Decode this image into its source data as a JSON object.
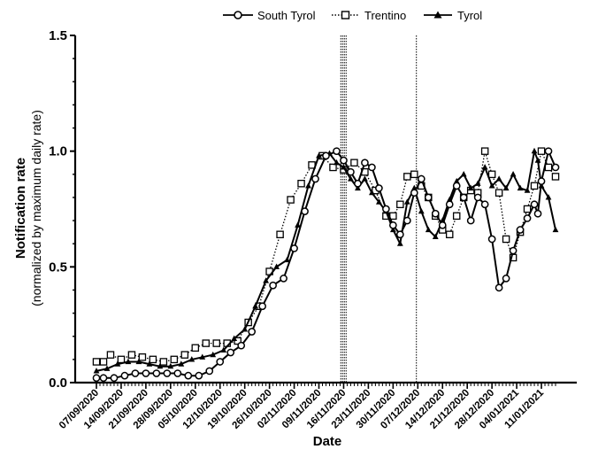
{
  "chart_data": {
    "type": "line",
    "xlabel": "Date",
    "ylabel_line1": "Notification rate",
    "ylabel_line2": "(normalized by maximum daily rate)",
    "ylim": [
      0,
      1.5
    ],
    "yticks": [
      "0.0",
      "0.5",
      "1.0",
      "1.5"
    ],
    "x_start_date": "07/09/2020",
    "x_days": 130,
    "xtick_labels": [
      "07/09/2020",
      "14/09/2020",
      "21/09/2020",
      "28/09/2020",
      "05/10/2020",
      "12/10/2020",
      "19/10/2020",
      "26/10/2020",
      "02/11/2020",
      "09/11/2020",
      "16/11/2020",
      "23/11/2020",
      "30/11/2020",
      "07/12/2020",
      "14/12/2020",
      "21/12/2020",
      "28/12/2020",
      "04/01/2021",
      "11/01/2021"
    ],
    "vertical_lines": [
      "16/11/2020 (dotted, x4)",
      "07/12/2020 (dotted)"
    ],
    "legend": "top",
    "series": [
      {
        "name": "South Tyrol",
        "marker": "circle-open",
        "line": "solid",
        "color": "#000000",
        "x": [
          0,
          2,
          5,
          8,
          11,
          14,
          17,
          20,
          23,
          26,
          29,
          32,
          35,
          38,
          41,
          44,
          47,
          50,
          53,
          56,
          59,
          62,
          65,
          68,
          70,
          72,
          74,
          76,
          78,
          80,
          82,
          84,
          86,
          88,
          90,
          92,
          94,
          96,
          98,
          100,
          102,
          104,
          106,
          108,
          110,
          112,
          114,
          116,
          118,
          120,
          122,
          124,
          125,
          126,
          128,
          130
        ],
        "y": [
          0.02,
          0.02,
          0.02,
          0.03,
          0.04,
          0.04,
          0.04,
          0.04,
          0.04,
          0.03,
          0.03,
          0.05,
          0.09,
          0.13,
          0.16,
          0.22,
          0.33,
          0.42,
          0.45,
          0.58,
          0.74,
          0.88,
          0.98,
          1.0,
          0.96,
          0.91,
          0.86,
          0.95,
          0.93,
          0.84,
          0.75,
          0.68,
          0.64,
          0.7,
          0.82,
          0.88,
          0.8,
          0.73,
          0.68,
          0.77,
          0.85,
          0.8,
          0.7,
          0.8,
          0.77,
          0.62,
          0.41,
          0.45,
          0.57,
          0.66,
          0.71,
          0.77,
          0.73,
          0.87,
          1.0,
          0.93
        ]
      },
      {
        "name": "Trentino",
        "marker": "square-open",
        "line": "dotted",
        "color": "#000000",
        "x": [
          0,
          2,
          4,
          7,
          10,
          13,
          16,
          19,
          22,
          25,
          28,
          31,
          34,
          37,
          40,
          43,
          46,
          49,
          52,
          55,
          58,
          61,
          64,
          67,
          70,
          73,
          76,
          79,
          82,
          84,
          86,
          88,
          90,
          92,
          94,
          96,
          98,
          100,
          102,
          104,
          106,
          108,
          110,
          112,
          114,
          116,
          118,
          120,
          122,
          124,
          126,
          128,
          130
        ],
        "y": [
          0.09,
          0.09,
          0.12,
          0.1,
          0.12,
          0.11,
          0.1,
          0.09,
          0.1,
          0.12,
          0.15,
          0.17,
          0.17,
          0.17,
          0.18,
          0.26,
          0.33,
          0.48,
          0.64,
          0.79,
          0.86,
          0.94,
          0.98,
          0.93,
          0.92,
          0.95,
          0.91,
          0.83,
          0.72,
          0.72,
          0.77,
          0.89,
          0.9,
          0.85,
          0.8,
          0.72,
          0.66,
          0.64,
          0.72,
          0.8,
          0.83,
          0.82,
          1.0,
          0.9,
          0.82,
          0.62,
          0.54,
          0.65,
          0.75,
          0.85,
          1.0,
          0.93,
          0.89
        ]
      },
      {
        "name": "Tyrol",
        "marker": "triangle-filled",
        "line": "solid",
        "color": "#000000",
        "x": [
          0,
          3,
          6,
          9,
          12,
          15,
          18,
          21,
          24,
          27,
          30,
          33,
          36,
          39,
          42,
          45,
          48,
          51,
          54,
          57,
          60,
          63,
          66,
          68,
          70,
          72,
          74,
          76,
          78,
          80,
          82,
          84,
          86,
          88,
          90,
          92,
          94,
          96,
          98,
          100,
          102,
          104,
          106,
          108,
          110,
          112,
          114,
          116,
          118,
          120,
          122,
          124,
          125,
          126,
          128,
          130
        ],
        "y": [
          0.05,
          0.06,
          0.08,
          0.09,
          0.09,
          0.08,
          0.07,
          0.07,
          0.08,
          0.1,
          0.11,
          0.12,
          0.14,
          0.19,
          0.23,
          0.33,
          0.44,
          0.5,
          0.53,
          0.68,
          0.85,
          0.98,
          0.99,
          0.95,
          0.93,
          0.88,
          0.84,
          0.88,
          0.82,
          0.78,
          0.74,
          0.66,
          0.6,
          0.78,
          0.84,
          0.74,
          0.66,
          0.63,
          0.7,
          0.79,
          0.87,
          0.9,
          0.84,
          0.86,
          0.93,
          0.85,
          0.88,
          0.84,
          0.9,
          0.84,
          0.83,
          1.0,
          0.96,
          0.85,
          0.8,
          0.66
        ]
      }
    ]
  }
}
